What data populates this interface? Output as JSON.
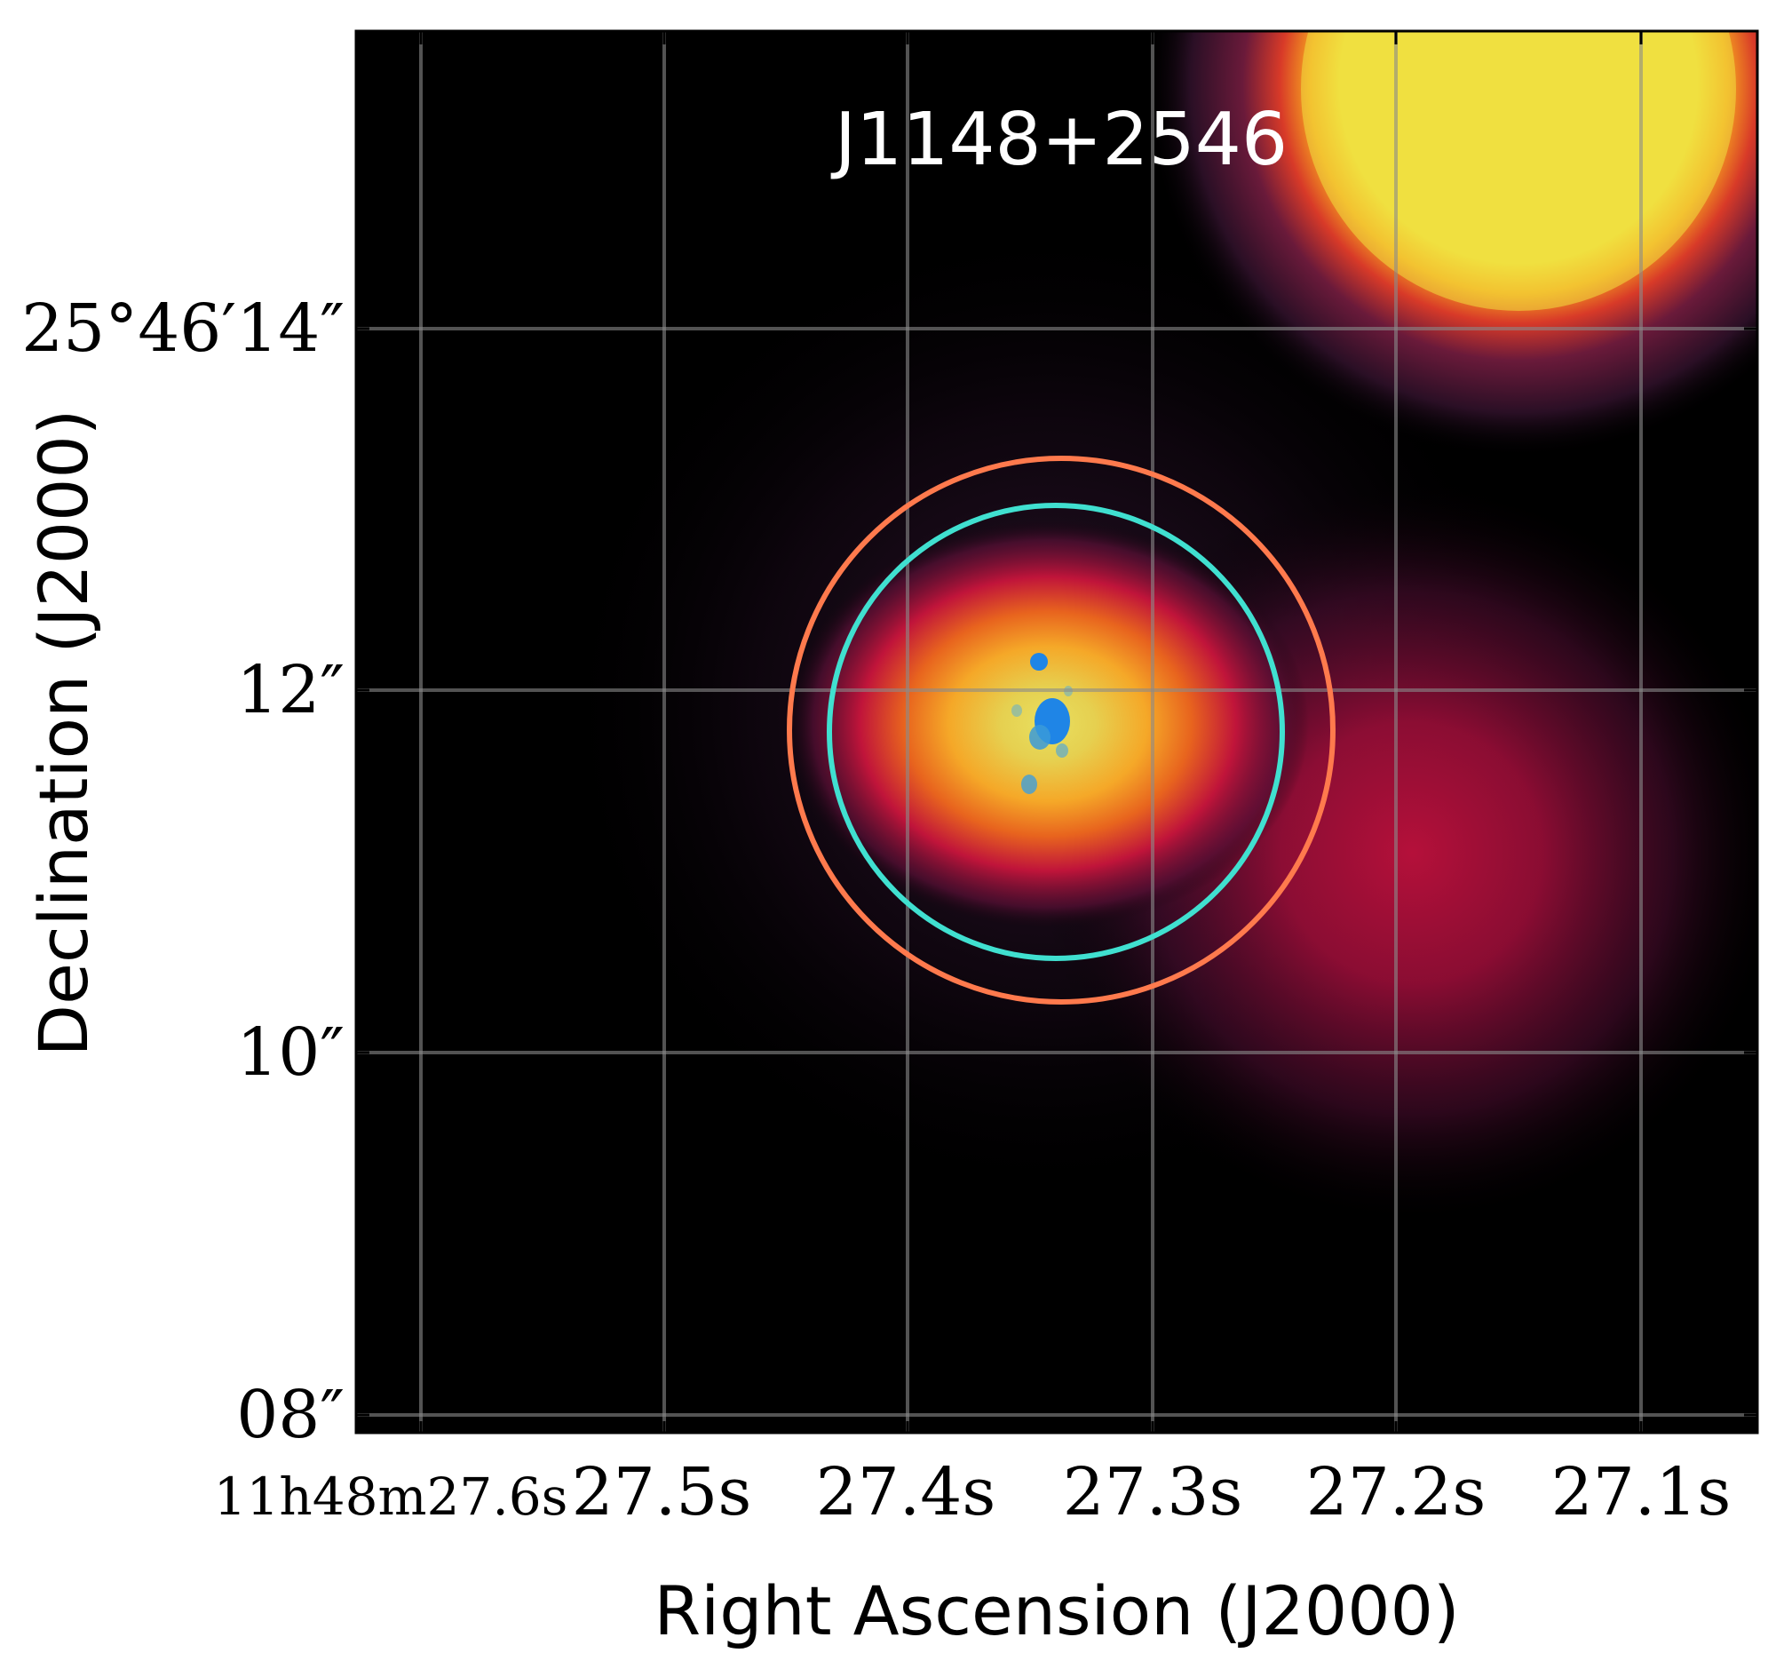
{
  "figure": {
    "title": "J1148+2546",
    "xlabel": "Right Ascension (J2000)",
    "ylabel": "Declination (J2000)",
    "x_ticks": [
      {
        "label": "11h48m27.6s",
        "ra_seconds": 27.6
      },
      {
        "label": "27.5s",
        "ra_seconds": 27.5
      },
      {
        "label": "27.4s",
        "ra_seconds": 27.4
      },
      {
        "label": "27.3s",
        "ra_seconds": 27.3
      },
      {
        "label": "27.2s",
        "ra_seconds": 27.2
      },
      {
        "label": "27.1s",
        "ra_seconds": 27.1
      }
    ],
    "y_ticks": [
      {
        "label": "25°46′14″",
        "dec_arcsec": 14
      },
      {
        "label": "12″",
        "dec_arcsec": 12
      },
      {
        "label": "10″",
        "dec_arcsec": 10
      },
      {
        "label": "08″",
        "dec_arcsec": 8
      }
    ],
    "grid": true,
    "apertures": [
      {
        "name": "outer-aperture",
        "color": "#ff7a4d"
      },
      {
        "name": "inner-aperture",
        "color": "#40e0d0"
      }
    ],
    "colors": {
      "grid": "#8a8a8a",
      "title": "#ffffff",
      "bright_source": "#f0e040",
      "galaxy_core": "#1f85e6"
    }
  }
}
